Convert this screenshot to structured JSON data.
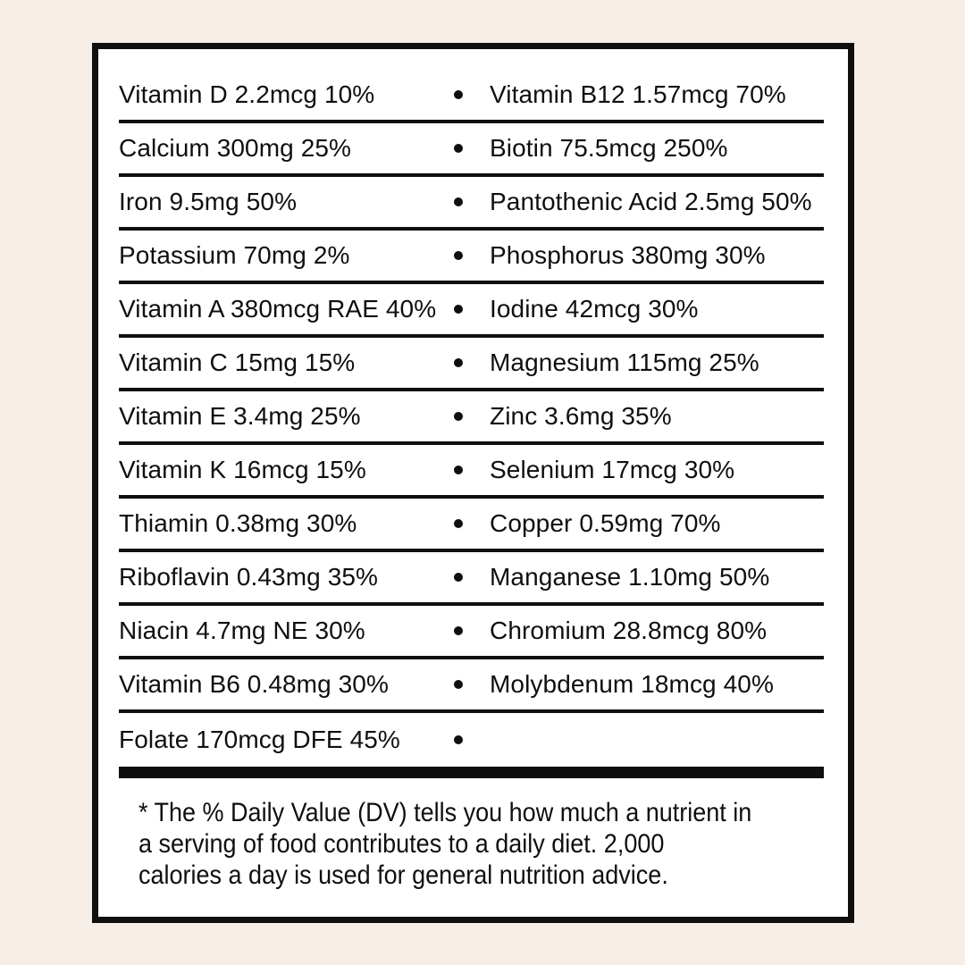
{
  "page": {
    "background_color": "#f6eee7"
  },
  "label": {
    "background_color": "#ffffff",
    "ink_color": "#0f0f0f",
    "bullet_glyph": "•",
    "rows": [
      {
        "left": "Vitamin D 2.2mcg 10%",
        "right": "Vitamin B12 1.57mcg 70%"
      },
      {
        "left": "Calcium 300mg 25%",
        "right": "Biotin 75.5mcg 250%"
      },
      {
        "left": "Iron 9.5mg 50%",
        "right": "Pantothenic Acid 2.5mg 50%"
      },
      {
        "left": "Potassium 70mg 2%",
        "right": "Phosphorus 380mg 30%"
      },
      {
        "left": "Vitamin A 380mcg RAE 40%",
        "right": "Iodine 42mcg 30%"
      },
      {
        "left": "Vitamin C 15mg 15%",
        "right": "Magnesium 115mg 25%"
      },
      {
        "left": "Vitamin E 3.4mg 25%",
        "right": "Zinc 3.6mg 35%"
      },
      {
        "left": "Vitamin K 16mcg 15%",
        "right": "Selenium 17mcg 30%"
      },
      {
        "left": "Thiamin 0.38mg 30%",
        "right": "Copper 0.59mg 70%"
      },
      {
        "left": "Riboflavin 0.43mg 35%",
        "right": "Manganese 1.10mg 50%"
      },
      {
        "left": "Niacin 4.7mg NE 30%",
        "right": "Chromium 28.8mcg 80%"
      },
      {
        "left": "Vitamin B6 0.48mg 30%",
        "right": "Molybdenum 18mcg 40%"
      },
      {
        "left": "Folate 170mcg DFE 45%",
        "right": ""
      }
    ],
    "footnote_lines": [
      "* The % Daily Value (DV) tells you how much a nutrient in",
      "a serving of food contributes to a daily diet. 2,000",
      "calories a day is used for general nutrition advice."
    ]
  }
}
